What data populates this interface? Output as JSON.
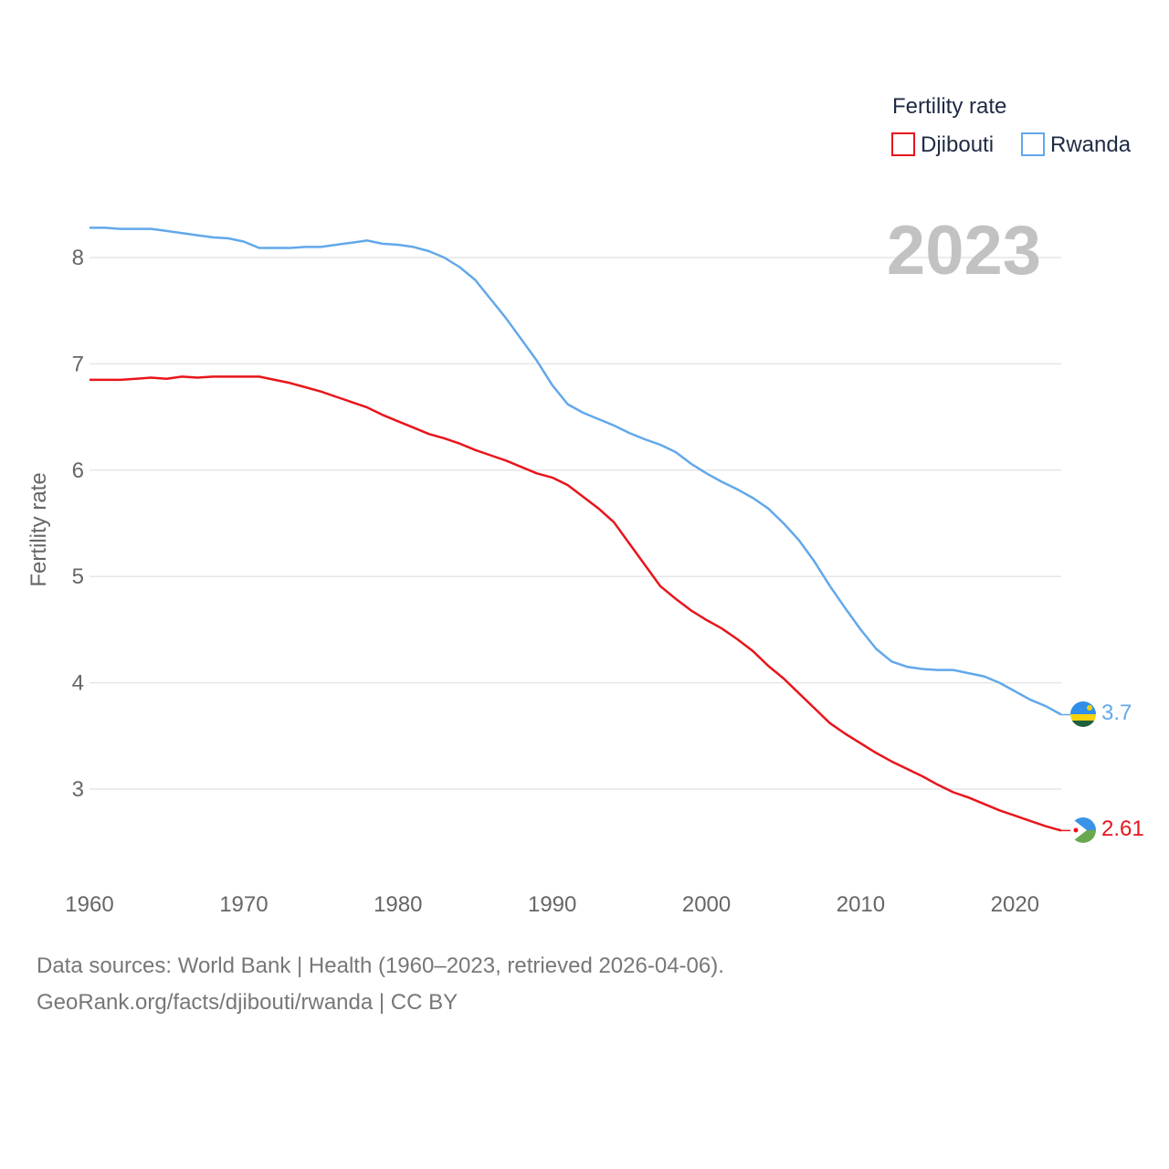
{
  "colors": {
    "djibouti": "#e8151b",
    "rwanda": "#62a8ea",
    "grid": "#e6e6e6",
    "tick": "#666666",
    "year": "#c2c2c2"
  },
  "chart_data": {
    "type": "line",
    "title": "",
    "xlabel": "",
    "ylabel": "Fertility rate",
    "xlim": [
      1960,
      2023
    ],
    "ylim": [
      2.4,
      8.6
    ],
    "x_ticks": [
      1960,
      1970,
      1980,
      1990,
      2000,
      2010,
      2020
    ],
    "y_ticks": [
      3,
      4,
      5,
      6,
      7,
      8
    ],
    "year_label": "2023",
    "legend": {
      "title": "Fertility rate",
      "position": "top-right",
      "entries": [
        "Djibouti",
        "Rwanda"
      ]
    },
    "x": [
      1960,
      1961,
      1962,
      1963,
      1964,
      1965,
      1966,
      1967,
      1968,
      1969,
      1970,
      1971,
      1972,
      1973,
      1974,
      1975,
      1976,
      1977,
      1978,
      1979,
      1980,
      1981,
      1982,
      1983,
      1984,
      1985,
      1986,
      1987,
      1988,
      1989,
      1990,
      1991,
      1992,
      1993,
      1994,
      1995,
      1996,
      1997,
      1998,
      1999,
      2000,
      2001,
      2002,
      2003,
      2004,
      2005,
      2006,
      2007,
      2008,
      2009,
      2010,
      2011,
      2012,
      2013,
      2014,
      2015,
      2016,
      2017,
      2018,
      2019,
      2020,
      2021,
      2022,
      2023
    ],
    "series": [
      {
        "name": "Djibouti",
        "color": "#e8151b",
        "end_label": "2.61",
        "values": [
          6.85,
          6.85,
          6.85,
          6.86,
          6.87,
          6.86,
          6.88,
          6.87,
          6.88,
          6.88,
          6.88,
          6.88,
          6.85,
          6.82,
          6.78,
          6.74,
          6.69,
          6.64,
          6.59,
          6.52,
          6.46,
          6.4,
          6.34,
          6.3,
          6.25,
          6.19,
          6.14,
          6.09,
          6.03,
          5.97,
          5.93,
          5.86,
          5.75,
          5.64,
          5.51,
          5.31,
          5.11,
          4.91,
          4.79,
          4.68,
          4.59,
          4.51,
          4.41,
          4.3,
          4.16,
          4.04,
          3.9,
          3.76,
          3.62,
          3.52,
          3.43,
          3.34,
          3.26,
          3.19,
          3.12,
          3.04,
          2.97,
          2.92,
          2.86,
          2.8,
          2.75,
          2.7,
          2.65,
          2.61
        ]
      },
      {
        "name": "Rwanda",
        "color": "#62a8ea",
        "end_label": "3.7",
        "values": [
          8.28,
          8.28,
          8.27,
          8.27,
          8.27,
          8.25,
          8.23,
          8.21,
          8.19,
          8.18,
          8.15,
          8.09,
          8.09,
          8.09,
          8.1,
          8.1,
          8.12,
          8.14,
          8.16,
          8.13,
          8.12,
          8.1,
          8.06,
          8.0,
          7.91,
          7.79,
          7.61,
          7.43,
          7.23,
          7.03,
          6.8,
          6.62,
          6.54,
          6.48,
          6.42,
          6.35,
          6.29,
          6.24,
          6.17,
          6.06,
          5.97,
          5.89,
          5.82,
          5.74,
          5.64,
          5.5,
          5.34,
          5.14,
          4.91,
          4.7,
          4.5,
          4.32,
          4.2,
          4.15,
          4.13,
          4.12,
          4.12,
          4.09,
          4.06,
          4.0,
          3.92,
          3.84,
          3.78,
          3.7
        ]
      }
    ]
  },
  "footer": {
    "line1": "Data sources: World Bank | Health (1960–2023, retrieved 2026-04-06).",
    "line2": "GeoRank.org/facts/djibouti/rwanda | CC BY"
  }
}
